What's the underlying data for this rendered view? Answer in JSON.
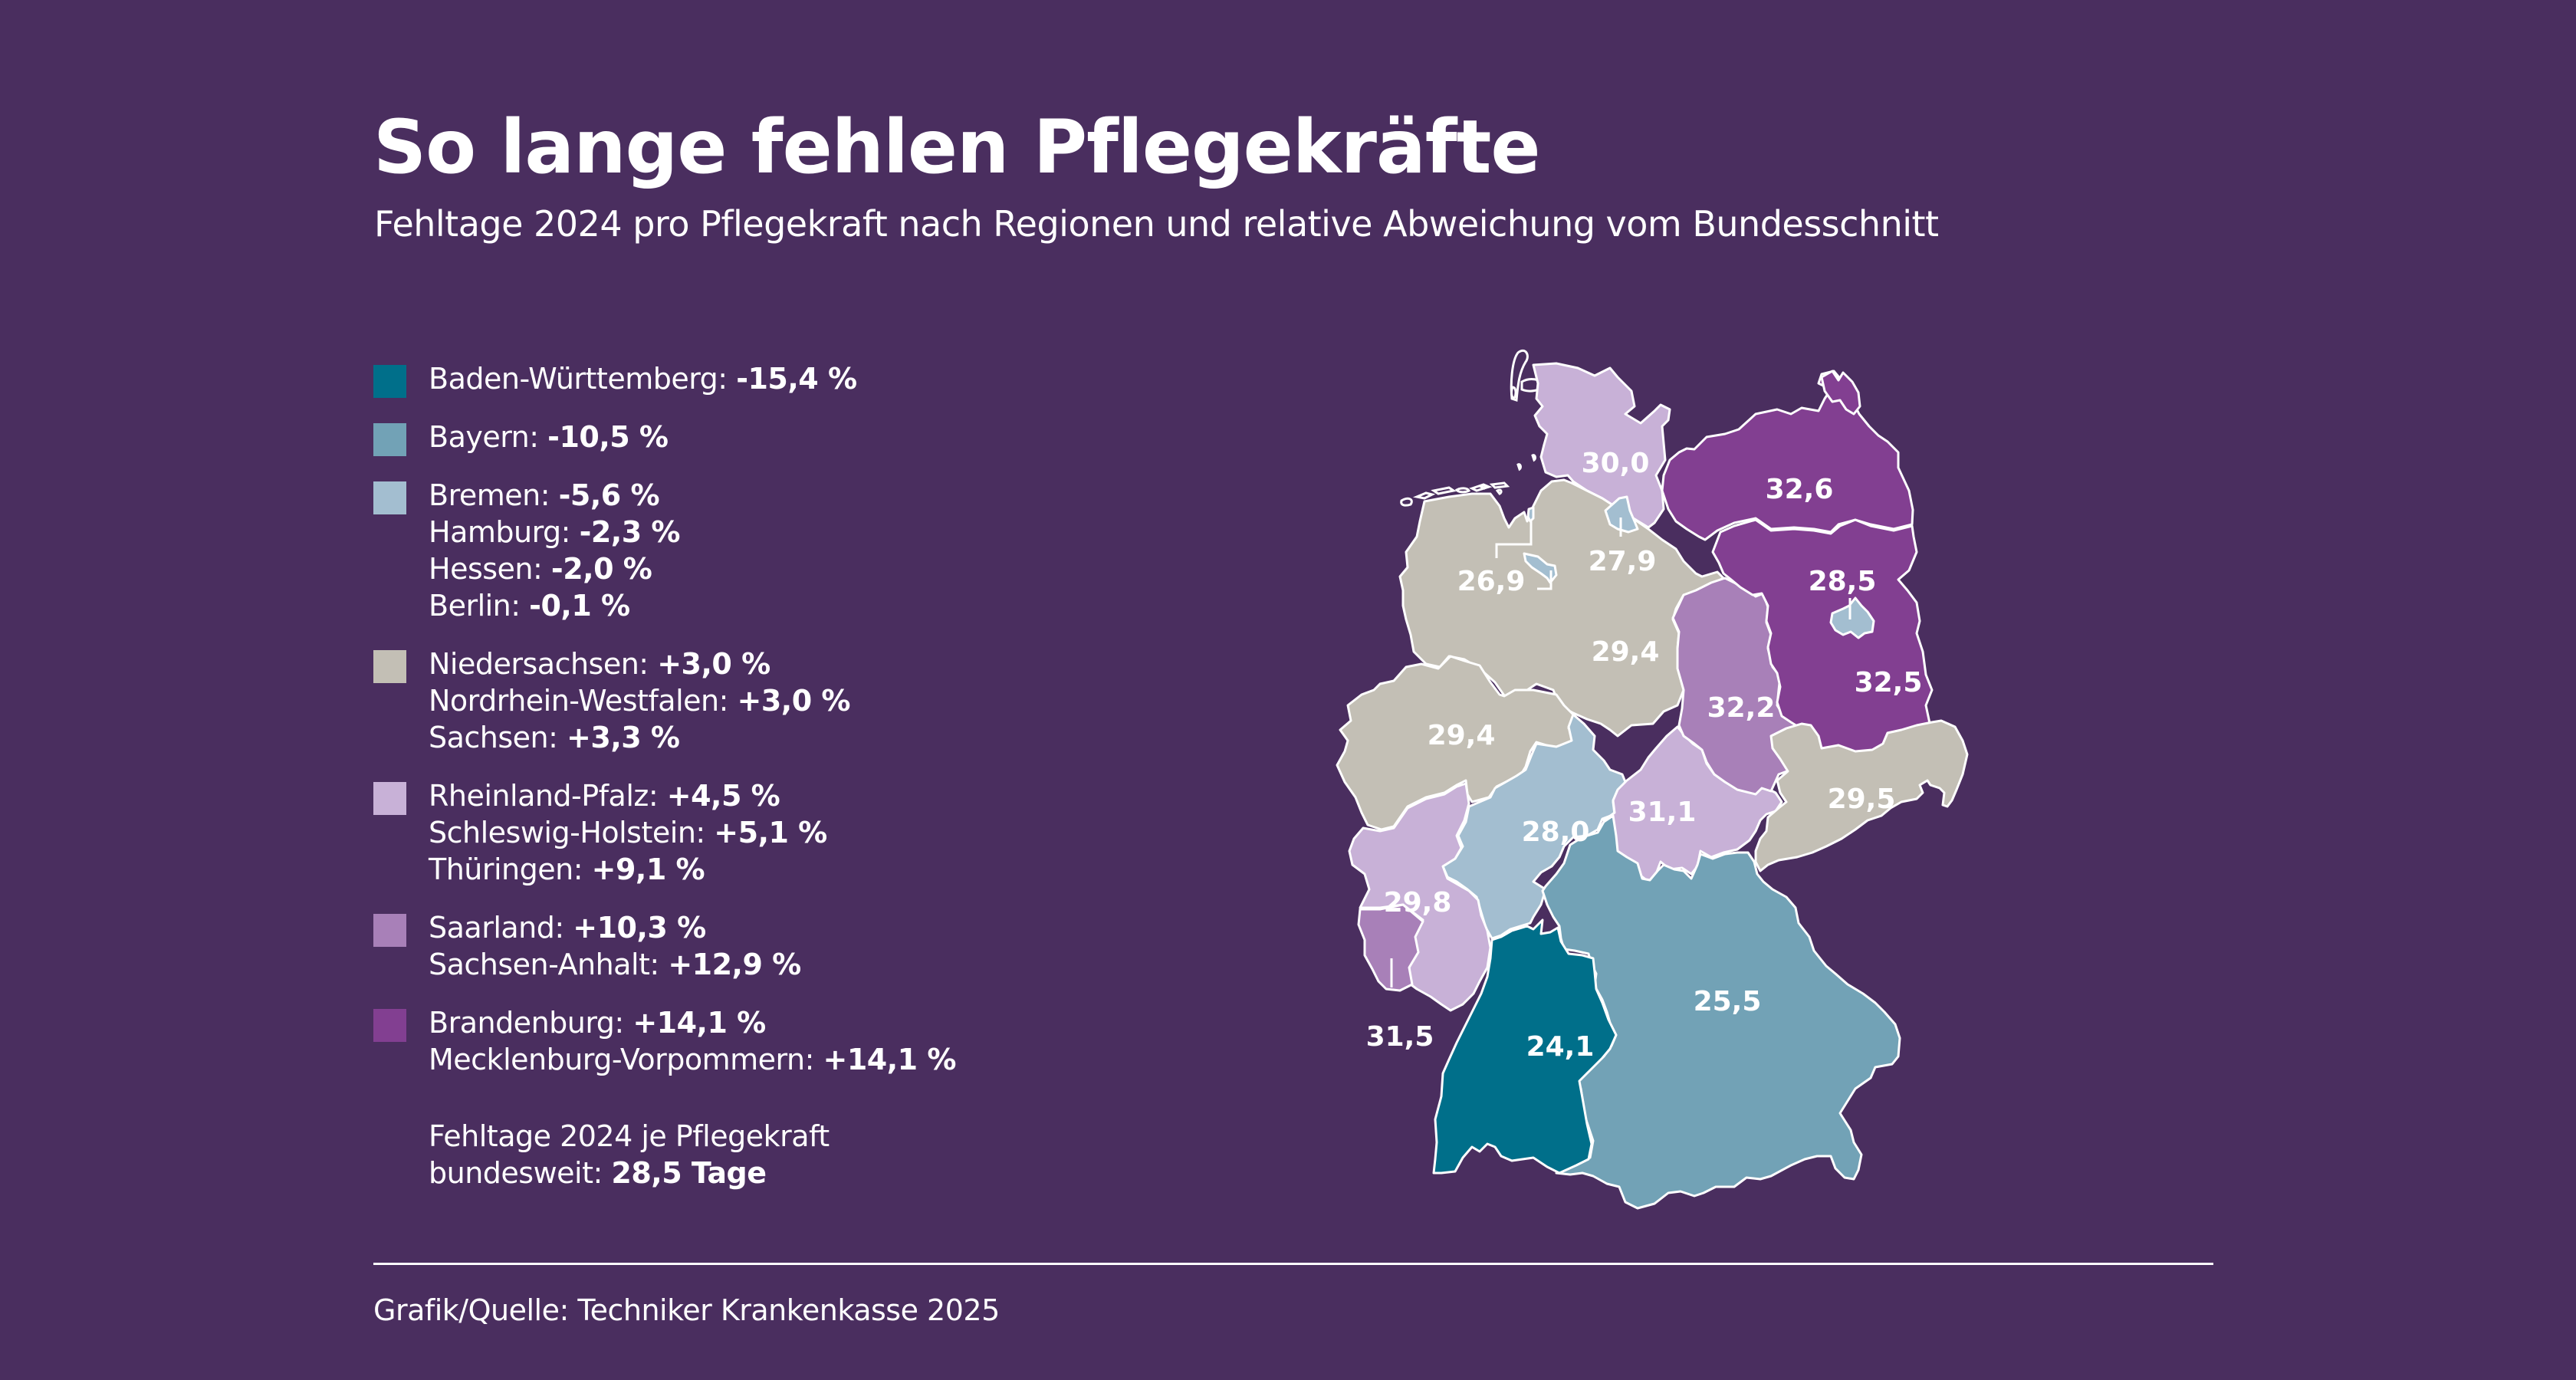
{
  "header": {
    "title": "So lange fehlen Pflegekräfte",
    "subtitle": "Fehltage 2024 pro Pflegekraft nach Regionen und relative Abweichung vom Bundesschnitt"
  },
  "legend": {
    "groups": [
      {
        "color": "#006f8a",
        "items": [
          {
            "name": "Baden-Württemberg:",
            "value": "-15,4 %"
          }
        ]
      },
      {
        "color": "#72a2b6",
        "items": [
          {
            "name": "Bayern:",
            "value": "-10,5 %"
          }
        ]
      },
      {
        "color": "#a3bed0",
        "items": [
          {
            "name": "Bremen:",
            "value": "-5,6 %"
          },
          {
            "name": "Hamburg:",
            "value": "-2,3 %"
          },
          {
            "name": "Hessen:",
            "value": "-2,0 %"
          },
          {
            "name": "Berlin:",
            "value": "-0,1 %"
          }
        ]
      },
      {
        "color": "#c3bfb5",
        "items": [
          {
            "name": "Niedersachsen:",
            "value": "+3,0 %"
          },
          {
            "name": "Nordrhein-Westfalen:",
            "value": "+3,0 %"
          },
          {
            "name": "Sachsen:",
            "value": "+3,3 %"
          }
        ]
      },
      {
        "color": "#c8b1d7",
        "items": [
          {
            "name": "Rheinland-Pfalz:",
            "value": "+4,5 %"
          },
          {
            "name": "Schleswig-Holstein:",
            "value": "+5,1 %"
          },
          {
            "name": "Thüringen:",
            "value": "+9,1 %"
          }
        ]
      },
      {
        "color": "#a880b8",
        "items": [
          {
            "name": "Saarland:",
            "value": "+10,3 %"
          },
          {
            "name": "Sachsen-Anhalt:",
            "value": "+12,9 %"
          }
        ]
      },
      {
        "color": "#823f91",
        "items": [
          {
            "name": "Brandenburg:",
            "value": "+14,1 %"
          },
          {
            "name": "Mecklenburg-Vorpommern:",
            "value": "+14,1 %"
          }
        ]
      }
    ]
  },
  "national_average": {
    "line1": "Fehltage 2024 je Pflegekraft",
    "line2_prefix": "bundesweit:",
    "line2_value": "28,5 Tage"
  },
  "footer": {
    "source": "Grafik/Quelle: Techniker Krankenkasse 2025"
  },
  "chart_data": {
    "type": "choropleth",
    "title": "So lange fehlen Pflegekräfte",
    "subtitle": "Fehltage 2024 pro Pflegekraft nach Regionen und relative Abweichung vom Bundesschnitt",
    "unit": "Fehltage pro Pflegekraft",
    "national_average": 28.5,
    "regions": [
      {
        "name": "Schleswig-Holstein",
        "days": "30,0",
        "deviation": "+5,1 %",
        "color": "#c8b1d7"
      },
      {
        "name": "Mecklenburg-Vorpommern",
        "days": "32,6",
        "deviation": "+14,1 %",
        "color": "#823f91"
      },
      {
        "name": "Hamburg",
        "days": "27,9",
        "deviation": "-2,3 %",
        "color": "#a3bed0"
      },
      {
        "name": "Bremen",
        "days": "26,9",
        "deviation": "-5,6 %",
        "color": "#a3bed0"
      },
      {
        "name": "Niedersachsen",
        "days": "29,4",
        "deviation": "+3,0 %",
        "color": "#c3bfb5"
      },
      {
        "name": "Berlin",
        "days": "28,5",
        "deviation": "-0,1 %",
        "color": "#a3bed0"
      },
      {
        "name": "Brandenburg",
        "days": "32,5",
        "deviation": "+14,1 %",
        "color": "#823f91"
      },
      {
        "name": "Sachsen-Anhalt",
        "days": "32,2",
        "deviation": "+12,9 %",
        "color": "#a880b8"
      },
      {
        "name": "Nordrhein-Westfalen",
        "days": "29,4",
        "deviation": "+3,0 %",
        "color": "#c3bfb5"
      },
      {
        "name": "Sachsen",
        "days": "29,5",
        "deviation": "+3,3 %",
        "color": "#c3bfb5"
      },
      {
        "name": "Hessen",
        "days": "28,0",
        "deviation": "-2,0 %",
        "color": "#a3bed0"
      },
      {
        "name": "Thüringen",
        "days": "31,1",
        "deviation": "+9,1 %",
        "color": "#c8b1d7"
      },
      {
        "name": "Rheinland-Pfalz",
        "days": "29,8",
        "deviation": "+4,5 %",
        "color": "#c8b1d7"
      },
      {
        "name": "Saarland",
        "days": "31,5",
        "deviation": "+10,3 %",
        "color": "#a880b8"
      },
      {
        "name": "Baden-Württemberg",
        "days": "24,1",
        "deviation": "-15,4 %",
        "color": "#006f8a"
      },
      {
        "name": "Bayern",
        "days": "25,5",
        "deviation": "-10,5 %",
        "color": "#72a2b6"
      }
    ]
  }
}
